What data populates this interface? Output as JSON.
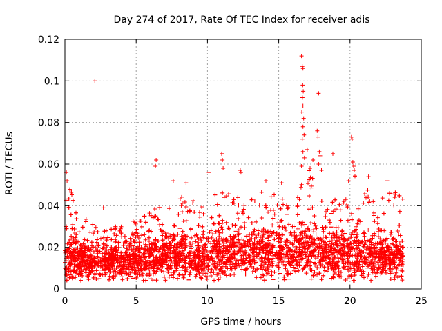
{
  "chart_data": {
    "type": "scatter",
    "title": "Day 274 of 2017, Rate Of TEC Index for receiver adis",
    "xlabel": "GPS time / hours",
    "ylabel": "ROTI / TECUs",
    "xlim": [
      0,
      25
    ],
    "ylim": [
      0,
      0.12
    ],
    "xticks": [
      0,
      5,
      10,
      15,
      20,
      25
    ],
    "xtick_labels": [
      "0",
      "5",
      "10",
      "15",
      "20",
      "25"
    ],
    "yticks": [
      0,
      0.02,
      0.04,
      0.06,
      0.08,
      0.1,
      0.12
    ],
    "ytick_labels": [
      "0",
      "0.02",
      "0.04",
      "0.06",
      "0.08",
      "0.1",
      "0.12"
    ],
    "grid": true,
    "marker": "plus",
    "color": "#ff0000",
    "x_range_hours": [
      0,
      23.75
    ],
    "profile": [
      {
        "x": 0.0,
        "typical": 0.012,
        "spread": 0.008,
        "upper": 0.042
      },
      {
        "x": 0.3,
        "typical": 0.014,
        "spread": 0.01,
        "upper": 0.05
      },
      {
        "x": 1.0,
        "typical": 0.014,
        "spread": 0.008,
        "upper": 0.035
      },
      {
        "x": 2.0,
        "typical": 0.013,
        "spread": 0.008,
        "upper": 0.032
      },
      {
        "x": 3.0,
        "typical": 0.013,
        "spread": 0.007,
        "upper": 0.03
      },
      {
        "x": 4.0,
        "typical": 0.013,
        "spread": 0.007,
        "upper": 0.03
      },
      {
        "x": 5.0,
        "typical": 0.014,
        "spread": 0.008,
        "upper": 0.034
      },
      {
        "x": 6.0,
        "typical": 0.015,
        "spread": 0.009,
        "upper": 0.038
      },
      {
        "x": 7.0,
        "typical": 0.016,
        "spread": 0.01,
        "upper": 0.042
      },
      {
        "x": 8.0,
        "typical": 0.016,
        "spread": 0.01,
        "upper": 0.048
      },
      {
        "x": 9.0,
        "typical": 0.016,
        "spread": 0.01,
        "upper": 0.045
      },
      {
        "x": 10.0,
        "typical": 0.016,
        "spread": 0.01,
        "upper": 0.04
      },
      {
        "x": 11.0,
        "typical": 0.017,
        "spread": 0.01,
        "upper": 0.05
      },
      {
        "x": 12.0,
        "typical": 0.017,
        "spread": 0.01,
        "upper": 0.048
      },
      {
        "x": 13.0,
        "typical": 0.017,
        "spread": 0.01,
        "upper": 0.045
      },
      {
        "x": 14.0,
        "typical": 0.017,
        "spread": 0.01,
        "upper": 0.048
      },
      {
        "x": 15.0,
        "typical": 0.017,
        "spread": 0.01,
        "upper": 0.045
      },
      {
        "x": 16.0,
        "typical": 0.017,
        "spread": 0.01,
        "upper": 0.042
      },
      {
        "x": 16.7,
        "typical": 0.02,
        "spread": 0.014,
        "upper": 0.06
      },
      {
        "x": 17.5,
        "typical": 0.018,
        "spread": 0.012,
        "upper": 0.055
      },
      {
        "x": 18.5,
        "typical": 0.017,
        "spread": 0.01,
        "upper": 0.045
      },
      {
        "x": 19.5,
        "typical": 0.016,
        "spread": 0.01,
        "upper": 0.042
      },
      {
        "x": 20.3,
        "typical": 0.017,
        "spread": 0.011,
        "upper": 0.055
      },
      {
        "x": 21.5,
        "typical": 0.016,
        "spread": 0.01,
        "upper": 0.048
      },
      {
        "x": 22.5,
        "typical": 0.016,
        "spread": 0.01,
        "upper": 0.048
      },
      {
        "x": 23.75,
        "typical": 0.015,
        "spread": 0.01,
        "upper": 0.045
      }
    ],
    "outliers": [
      {
        "x": 0.1,
        "y": 0.056
      },
      {
        "x": 0.15,
        "y": 0.052
      },
      {
        "x": 2.1,
        "y": 0.1
      },
      {
        "x": 2.7,
        "y": 0.039
      },
      {
        "x": 6.4,
        "y": 0.062
      },
      {
        "x": 6.35,
        "y": 0.059
      },
      {
        "x": 7.6,
        "y": 0.052
      },
      {
        "x": 8.5,
        "y": 0.051
      },
      {
        "x": 10.1,
        "y": 0.056
      },
      {
        "x": 11.0,
        "y": 0.065
      },
      {
        "x": 11.05,
        "y": 0.062
      },
      {
        "x": 11.1,
        "y": 0.058
      },
      {
        "x": 12.3,
        "y": 0.057
      },
      {
        "x": 12.35,
        "y": 0.056
      },
      {
        "x": 14.1,
        "y": 0.052
      },
      {
        "x": 15.2,
        "y": 0.051
      },
      {
        "x": 16.6,
        "y": 0.112
      },
      {
        "x": 16.65,
        "y": 0.107
      },
      {
        "x": 16.7,
        "y": 0.106
      },
      {
        "x": 16.68,
        "y": 0.098
      },
      {
        "x": 16.72,
        "y": 0.095
      },
      {
        "x": 16.66,
        "y": 0.092
      },
      {
        "x": 16.7,
        "y": 0.088
      },
      {
        "x": 16.62,
        "y": 0.085
      },
      {
        "x": 16.75,
        "y": 0.082
      },
      {
        "x": 16.7,
        "y": 0.078
      },
      {
        "x": 16.78,
        "y": 0.074
      },
      {
        "x": 16.65,
        "y": 0.072
      },
      {
        "x": 16.7,
        "y": 0.066
      },
      {
        "x": 16.8,
        "y": 0.063
      },
      {
        "x": 16.6,
        "y": 0.059
      },
      {
        "x": 17.0,
        "y": 0.067
      },
      {
        "x": 17.2,
        "y": 0.058
      },
      {
        "x": 17.4,
        "y": 0.062
      },
      {
        "x": 17.8,
        "y": 0.094
      },
      {
        "x": 17.7,
        "y": 0.076
      },
      {
        "x": 17.75,
        "y": 0.073
      },
      {
        "x": 17.85,
        "y": 0.066
      },
      {
        "x": 17.9,
        "y": 0.064
      },
      {
        "x": 17.8,
        "y": 0.06
      },
      {
        "x": 18.0,
        "y": 0.057
      },
      {
        "x": 18.8,
        "y": 0.065
      },
      {
        "x": 20.1,
        "y": 0.073
      },
      {
        "x": 20.15,
        "y": 0.072
      },
      {
        "x": 20.2,
        "y": 0.061
      },
      {
        "x": 20.25,
        "y": 0.059
      },
      {
        "x": 20.3,
        "y": 0.057
      },
      {
        "x": 19.9,
        "y": 0.052
      },
      {
        "x": 21.3,
        "y": 0.054
      },
      {
        "x": 22.6,
        "y": 0.052
      }
    ]
  }
}
